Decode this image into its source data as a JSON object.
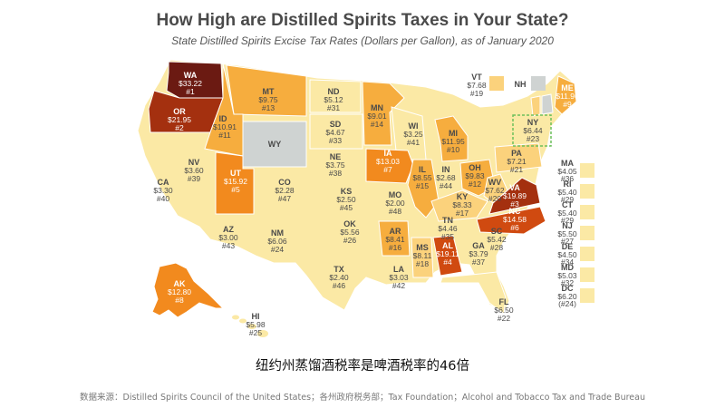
{
  "title": "How High are Distilled Spirits Taxes in Your State?",
  "subtitle": "State Distilled Spirits Excise Tax Rates (Dollars per Gallon), as of January 2020",
  "caption": "纽约州蒸馏酒税率是啤酒税率的46倍",
  "source": "数据来源：Distilled Spirits Council of the United States；各州政府税务部；Tax Foundation；Alcohol and Tobacco Tax and Trade Bureau",
  "colors": {
    "darkest": "#6b1a12",
    "dark": "#a4300f",
    "red": "#d04a10",
    "orange": "#f28a1e",
    "mid": "#f6ad3e",
    "light": "#fbd27c",
    "pale": "#fbe9a5",
    "palest": "#fdf2c4",
    "none": "#cfd3d2",
    "highlight": "#6dbf5b"
  },
  "states": [
    {
      "abbr": "WA",
      "rate": "$33.22",
      "rank": "#1"
    },
    {
      "abbr": "OR",
      "rate": "$21.95",
      "rank": "#2"
    },
    {
      "abbr": "MT",
      "rate": "$9.75",
      "rank": "#13"
    },
    {
      "abbr": "ID",
      "rate": "$10.91",
      "rank": "#11"
    },
    {
      "abbr": "WY",
      "rate": "",
      "rank": ""
    },
    {
      "abbr": "ND",
      "rate": "$5.12",
      "rank": "#31"
    },
    {
      "abbr": "SD",
      "rate": "$4.67",
      "rank": "#33"
    },
    {
      "abbr": "MN",
      "rate": "$9.01",
      "rank": "#14"
    },
    {
      "abbr": "WI",
      "rate": "$3.25",
      "rank": "#41"
    },
    {
      "abbr": "MI",
      "rate": "$11.95",
      "rank": "#10"
    },
    {
      "abbr": "NV",
      "rate": "$3.60",
      "rank": "#39"
    },
    {
      "abbr": "UT",
      "rate": "$15.92",
      "rank": "#5"
    },
    {
      "abbr": "CA",
      "rate": "$3.30",
      "rank": "#40"
    },
    {
      "abbr": "CO",
      "rate": "$2.28",
      "rank": "#47"
    },
    {
      "abbr": "NE",
      "rate": "$3.75",
      "rank": "#38"
    },
    {
      "abbr": "IA",
      "rate": "$13.03",
      "rank": "#7"
    },
    {
      "abbr": "IL",
      "rate": "$8.55",
      "rank": "#15"
    },
    {
      "abbr": "IN",
      "rate": "$2.68",
      "rank": "#44"
    },
    {
      "abbr": "OH",
      "rate": "$9.83",
      "rank": "#12"
    },
    {
      "abbr": "PA",
      "rate": "$7.21",
      "rank": "#21"
    },
    {
      "abbr": "NY",
      "rate": "$6.44",
      "rank": "#23"
    },
    {
      "abbr": "KS",
      "rate": "$2.50",
      "rank": "#45"
    },
    {
      "abbr": "MO",
      "rate": "$2.00",
      "rank": "#48"
    },
    {
      "abbr": "KY",
      "rate": "$8.33",
      "rank": "#17"
    },
    {
      "abbr": "WV",
      "rate": "$7.62",
      "rank": "#20"
    },
    {
      "abbr": "VA",
      "rate": "$19.89",
      "rank": "#3"
    },
    {
      "abbr": "AZ",
      "rate": "$3.00",
      "rank": "#43"
    },
    {
      "abbr": "NM",
      "rate": "$6.06",
      "rank": "#24"
    },
    {
      "abbr": "OK",
      "rate": "$5.56",
      "rank": "#26"
    },
    {
      "abbr": "AR",
      "rate": "$8.41",
      "rank": "#16"
    },
    {
      "abbr": "TN",
      "rate": "$4.46",
      "rank": "#35"
    },
    {
      "abbr": "NC",
      "rate": "$14.58",
      "rank": "#6"
    },
    {
      "abbr": "SC",
      "rate": "$5.42",
      "rank": "#28"
    },
    {
      "abbr": "TX",
      "rate": "$2.40",
      "rank": "#46"
    },
    {
      "abbr": "LA",
      "rate": "$3.03",
      "rank": "#42"
    },
    {
      "abbr": "MS",
      "rate": "$8.11",
      "rank": "#18"
    },
    {
      "abbr": "AL",
      "rate": "$19.11",
      "rank": "#4"
    },
    {
      "abbr": "GA",
      "rate": "$3.79",
      "rank": "#37"
    },
    {
      "abbr": "FL",
      "rate": "$6.50",
      "rank": "#22"
    },
    {
      "abbr": "AK",
      "rate": "$12.80",
      "rank": "#8"
    },
    {
      "abbr": "HI",
      "rate": "$5.98",
      "rank": "#25"
    },
    {
      "abbr": "ME",
      "rate": "$11.96",
      "rank": "#9"
    },
    {
      "abbr": "VT",
      "rate": "$7.68",
      "rank": "#19"
    },
    {
      "abbr": "NH",
      "rate": "",
      "rank": ""
    }
  ],
  "northeast_legend": [
    {
      "abbr": "MA",
      "rate": "$4.05",
      "rank": "#36"
    },
    {
      "abbr": "RI",
      "rate": "$5.40",
      "rank": "#29"
    },
    {
      "abbr": "CT",
      "rate": "$5.40",
      "rank": "#29"
    },
    {
      "abbr": "NJ",
      "rate": "$5.50",
      "rank": "#27"
    },
    {
      "abbr": "DE",
      "rate": "$4.50",
      "rank": "#34"
    },
    {
      "abbr": "MD",
      "rate": "$5.03",
      "rank": "#32"
    },
    {
      "abbr": "DC",
      "rate": "$6.20",
      "rank": "(#24)"
    }
  ]
}
